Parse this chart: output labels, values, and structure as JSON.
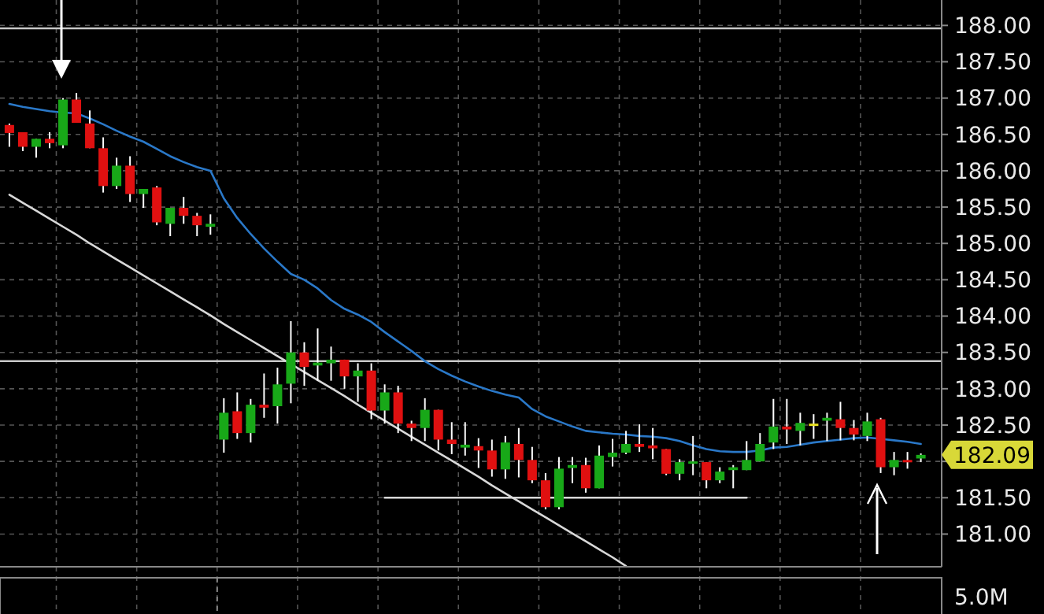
{
  "chart_data": {
    "type": "candlestick",
    "categories": [
      null,
      null,
      null,
      null,
      null,
      null,
      null,
      null,
      null,
      null,
      null,
      null,
      null,
      null,
      null,
      null,
      null,
      null,
      null,
      null,
      null,
      null,
      null,
      null,
      null,
      null,
      null,
      null,
      null,
      null,
      null,
      null,
      null,
      null,
      null,
      null,
      null,
      null,
      null,
      null,
      null,
      null,
      null,
      null,
      null,
      null,
      null,
      null,
      null,
      null,
      null,
      null,
      null,
      null,
      null,
      null,
      null,
      null,
      null,
      null,
      null,
      null,
      null,
      null,
      null,
      null,
      null,
      null,
      null
    ],
    "ohlc": [
      [
        186.63,
        186.65,
        186.33,
        186.52
      ],
      [
        186.53,
        186.53,
        186.27,
        186.33
      ],
      [
        186.33,
        186.44,
        186.18,
        186.44
      ],
      [
        186.44,
        186.53,
        186.31,
        186.38
      ],
      [
        186.35,
        187.0,
        186.31,
        186.98
      ],
      [
        186.98,
        187.07,
        186.66,
        186.66
      ],
      [
        186.65,
        186.83,
        186.31,
        186.31
      ],
      [
        186.31,
        186.46,
        185.7,
        185.79
      ],
      [
        185.79,
        186.18,
        185.75,
        186.07
      ],
      [
        186.07,
        186.2,
        185.57,
        185.68
      ],
      [
        185.68,
        185.75,
        185.49,
        185.75
      ],
      [
        185.77,
        185.79,
        185.25,
        185.29
      ],
      [
        185.27,
        185.49,
        185.1,
        185.49
      ],
      [
        185.49,
        185.64,
        185.27,
        185.38
      ],
      [
        185.38,
        185.42,
        185.1,
        185.25
      ],
      [
        185.23,
        185.4,
        185.12,
        185.27
      ],
      [
        182.3,
        182.87,
        182.12,
        182.67
      ],
      [
        182.69,
        182.95,
        182.31,
        182.39
      ],
      [
        182.39,
        182.86,
        182.26,
        182.78
      ],
      [
        182.78,
        183.21,
        182.6,
        182.74
      ],
      [
        182.76,
        183.29,
        182.52,
        183.06
      ],
      [
        183.07,
        183.93,
        182.8,
        183.5
      ],
      [
        183.5,
        183.64,
        183.04,
        183.3
      ],
      [
        183.32,
        183.83,
        183.11,
        183.36
      ],
      [
        183.35,
        183.58,
        183.11,
        183.4
      ],
      [
        183.4,
        183.4,
        183.0,
        183.17
      ],
      [
        183.17,
        183.35,
        182.82,
        183.25
      ],
      [
        183.25,
        183.35,
        182.58,
        182.7
      ],
      [
        182.7,
        183.06,
        182.52,
        182.95
      ],
      [
        182.95,
        183.04,
        182.39,
        182.52
      ],
      [
        182.52,
        182.56,
        182.28,
        182.46
      ],
      [
        182.46,
        182.87,
        182.28,
        182.71
      ],
      [
        182.71,
        182.71,
        182.15,
        182.3
      ],
      [
        182.3,
        182.54,
        182.1,
        182.24
      ],
      [
        182.19,
        182.54,
        182.08,
        182.23
      ],
      [
        182.21,
        182.32,
        181.91,
        182.15
      ],
      [
        182.15,
        182.3,
        181.79,
        181.89
      ],
      [
        181.89,
        182.35,
        181.76,
        182.26
      ],
      [
        182.24,
        182.46,
        181.78,
        182.02
      ],
      [
        182.02,
        182.2,
        181.7,
        181.74
      ],
      [
        181.74,
        181.84,
        181.34,
        181.37
      ],
      [
        181.37,
        182.06,
        181.34,
        181.9
      ],
      [
        181.91,
        182.06,
        181.7,
        181.95
      ],
      [
        181.95,
        182.05,
        181.57,
        181.63
      ],
      [
        181.63,
        182.22,
        181.63,
        182.08
      ],
      [
        182.06,
        182.31,
        181.93,
        182.12
      ],
      [
        182.12,
        182.42,
        182.1,
        182.24
      ],
      [
        182.24,
        182.51,
        182.13,
        182.2
      ],
      [
        182.22,
        182.46,
        182.03,
        182.18
      ],
      [
        182.17,
        182.17,
        181.81,
        181.83
      ],
      [
        181.83,
        182.03,
        181.74,
        181.99
      ],
      [
        181.97,
        182.35,
        181.81,
        182.0
      ],
      [
        181.99,
        181.99,
        181.63,
        181.74
      ],
      [
        181.74,
        181.92,
        181.7,
        181.86
      ],
      [
        181.88,
        181.95,
        181.63,
        181.92
      ],
      [
        181.88,
        182.28,
        181.88,
        182.02
      ],
      [
        182.0,
        182.39,
        182.0,
        182.24
      ],
      [
        182.26,
        182.86,
        182.17,
        182.48
      ],
      [
        182.48,
        182.86,
        182.24,
        182.44
      ],
      [
        182.42,
        182.67,
        182.22,
        182.53
      ],
      [
        182.52,
        182.65,
        182.31,
        182.5
      ],
      [
        182.56,
        182.67,
        182.28,
        182.6
      ],
      [
        182.58,
        182.82,
        182.29,
        182.46
      ],
      [
        182.46,
        182.57,
        182.29,
        182.37
      ],
      [
        182.35,
        182.67,
        182.28,
        182.55
      ],
      [
        182.58,
        182.6,
        181.84,
        181.92
      ],
      [
        181.92,
        182.13,
        181.81,
        182.02
      ],
      [
        182.02,
        182.13,
        181.9,
        181.99
      ],
      [
        182.04,
        182.11,
        181.99,
        182.09
      ]
    ],
    "colors": [
      "#e01010",
      "#e01010",
      "#18a818",
      "#e01010",
      "#18a818",
      "#e01010",
      "#e01010",
      "#e01010",
      "#18a818",
      "#e01010",
      "#18a818",
      "#e01010",
      "#18a818",
      "#e01010",
      "#e01010",
      "#18a818",
      "#18a818",
      "#e01010",
      "#18a818",
      "#e01010",
      "#18a818",
      "#18a818",
      "#e01010",
      "#18a818",
      "#18a818",
      "#e01010",
      "#18a818",
      "#e01010",
      "#18a818",
      "#e01010",
      "#e01010",
      "#18a818",
      "#e01010",
      "#e01010",
      "#18a818",
      "#e01010",
      "#e01010",
      "#18a818",
      "#e01010",
      "#e01010",
      "#e01010",
      "#18a818",
      "#18a818",
      "#e01010",
      "#18a818",
      "#18a818",
      "#18a818",
      "#e01010",
      "#e01010",
      "#e01010",
      "#18a818",
      "#18a818",
      "#e01010",
      "#18a818",
      "#18a818",
      "#18a818",
      "#18a818",
      "#18a818",
      "#e01010",
      "#18a818",
      "#e8e020",
      "#18a818",
      "#e01010",
      "#e01010",
      "#18a818",
      "#e01010",
      "#18a818",
      "#e01010",
      "#18a818"
    ],
    "series": [
      {
        "type": "line",
        "color": "#2a78c8",
        "values": [
          186.92,
          186.88,
          186.85,
          186.82,
          186.8,
          186.79,
          186.72,
          186.64,
          186.55,
          186.47,
          186.4,
          186.3,
          186.2,
          186.12,
          186.05,
          186.0,
          185.62,
          185.35,
          185.13,
          184.93,
          184.75,
          184.58,
          184.5,
          184.38,
          184.22,
          184.1,
          184.02,
          183.92,
          183.78,
          183.65,
          183.52,
          183.38,
          183.27,
          183.18,
          183.1,
          183.03,
          182.97,
          182.92,
          182.88,
          182.72,
          182.62,
          182.55,
          182.48,
          182.42,
          182.4,
          182.38,
          182.37,
          182.35,
          182.34,
          182.32,
          182.28,
          182.22,
          182.17,
          182.14,
          182.13,
          182.13,
          182.15,
          182.19,
          182.2,
          182.23,
          182.26,
          182.28,
          182.3,
          182.32,
          182.33,
          182.31,
          182.29,
          182.27,
          182.24
        ]
      },
      {
        "type": "line",
        "color": "#d8d8d8",
        "values": [
          185.67,
          185.56,
          185.45,
          185.34,
          185.23,
          185.12,
          185.0,
          184.89,
          184.78,
          184.67,
          184.56,
          184.45,
          184.34,
          184.23,
          184.12,
          184.01,
          183.89,
          183.78,
          183.67,
          183.56,
          183.45,
          183.34,
          183.23,
          183.12,
          183.01,
          182.9,
          182.78,
          182.67,
          182.56,
          182.45,
          182.34,
          182.23,
          182.12,
          182.01,
          181.9,
          181.79,
          181.67,
          181.56,
          181.45,
          181.34,
          181.23,
          181.12,
          181.01,
          180.9,
          180.79,
          180.68,
          180.56,
          null,
          null,
          null,
          null,
          null,
          null,
          null,
          null,
          null,
          null,
          null,
          null,
          null,
          null,
          null,
          null,
          null,
          null,
          null,
          null,
          null,
          null
        ]
      },
      {
        "type": "line",
        "color": "#d8d8d8",
        "values": [
          null,
          null,
          null,
          null,
          null,
          null,
          null,
          null,
          null,
          null,
          null,
          null,
          null,
          null,
          null,
          null,
          null,
          null,
          null,
          null,
          null,
          null,
          null,
          null,
          null,
          null,
          null,
          null,
          181.5,
          181.5,
          181.5,
          181.5,
          181.5,
          181.5,
          181.5,
          181.5,
          181.5,
          181.5,
          181.5,
          181.5,
          181.5,
          181.5,
          181.5,
          181.5,
          181.5,
          181.5,
          181.5,
          181.5,
          181.5,
          181.5,
          181.5,
          181.5,
          181.5,
          181.5,
          181.5,
          181.5,
          null,
          null,
          null,
          null,
          null,
          null,
          null,
          null,
          null,
          null,
          null,
          null,
          null
        ]
      }
    ],
    "ylim": [
      180.55,
      188.35
    ],
    "yticks": [
      {
        "value": 181,
        "label": "181.00"
      },
      {
        "value": 181.5,
        "label": "181.50"
      },
      {
        "value": 182,
        "label": null
      },
      {
        "value": 182.5,
        "label": "182.50"
      },
      {
        "value": 183,
        "label": "183.00"
      },
      {
        "value": 183.5,
        "label": "183.50"
      },
      {
        "value": 184,
        "label": "184.00"
      },
      {
        "value": 184.5,
        "label": "184.50"
      },
      {
        "value": 185,
        "label": "185.00"
      },
      {
        "value": 185.5,
        "label": "185.50"
      },
      {
        "value": 186,
        "label": "186.00"
      },
      {
        "value": 186.5,
        "label": "186.50"
      },
      {
        "value": 187,
        "label": "187.00"
      },
      {
        "value": 187.5,
        "label": "187.50"
      },
      {
        "value": 188,
        "label": "188.00"
      }
    ],
    "ref_lines": [
      {
        "axis": "y",
        "value": 187.96,
        "color": "#c8c8c8"
      },
      {
        "axis": "y",
        "value": 183.38,
        "color": "#c8c8c8"
      }
    ],
    "annotations": [
      "182.09",
      "5.0M"
    ],
    "grid": true,
    "tick_labels": "y"
  }
}
